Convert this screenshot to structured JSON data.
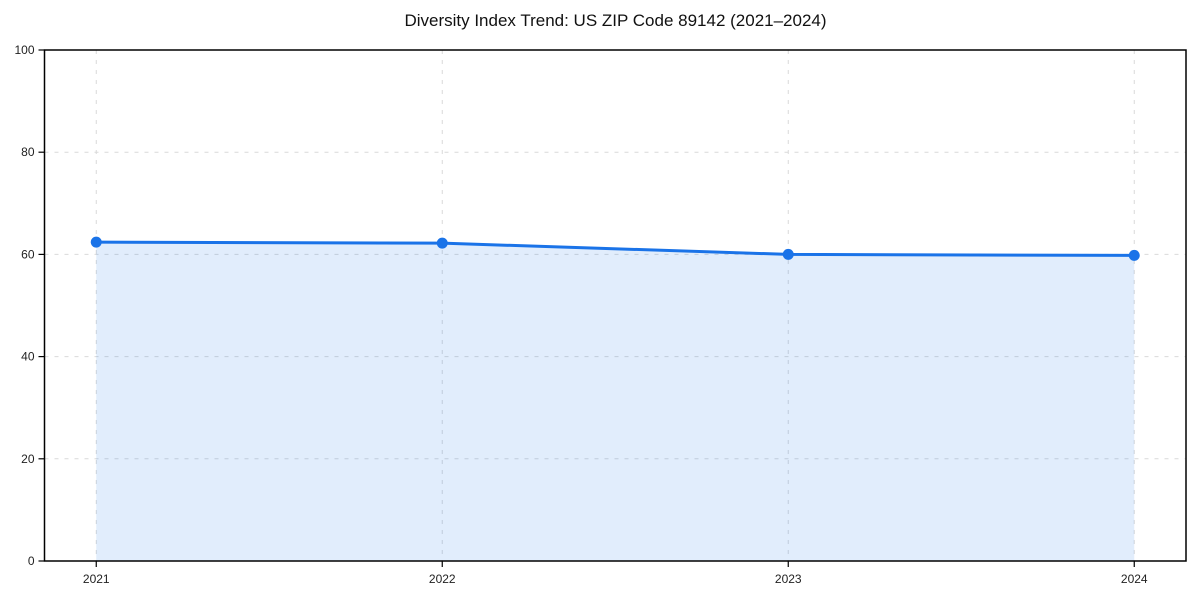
{
  "chart_data": {
    "type": "area",
    "title": "Diversity Index Trend: US ZIP Code 89142 (2021–2024)",
    "categories": [
      "2021",
      "2022",
      "2023",
      "2024"
    ],
    "series": [
      {
        "name": "Diversity Index",
        "values": [
          62.4,
          62.2,
          60.0,
          59.8
        ]
      }
    ],
    "xlabel": "",
    "ylabel": "",
    "ylim": [
      0,
      100
    ],
    "yticks": [
      0,
      20,
      40,
      60,
      80,
      100
    ],
    "grid": true,
    "grid_style": "dashed",
    "legend_position": "none",
    "colors": {
      "line": "#1a73e8",
      "marker": "#1a73e8",
      "fill": "rgba(26,115,232,0.13)",
      "grid": "#d9d9d9",
      "axis": "#000000",
      "tick_label": "#222222",
      "title": "#111111"
    }
  }
}
